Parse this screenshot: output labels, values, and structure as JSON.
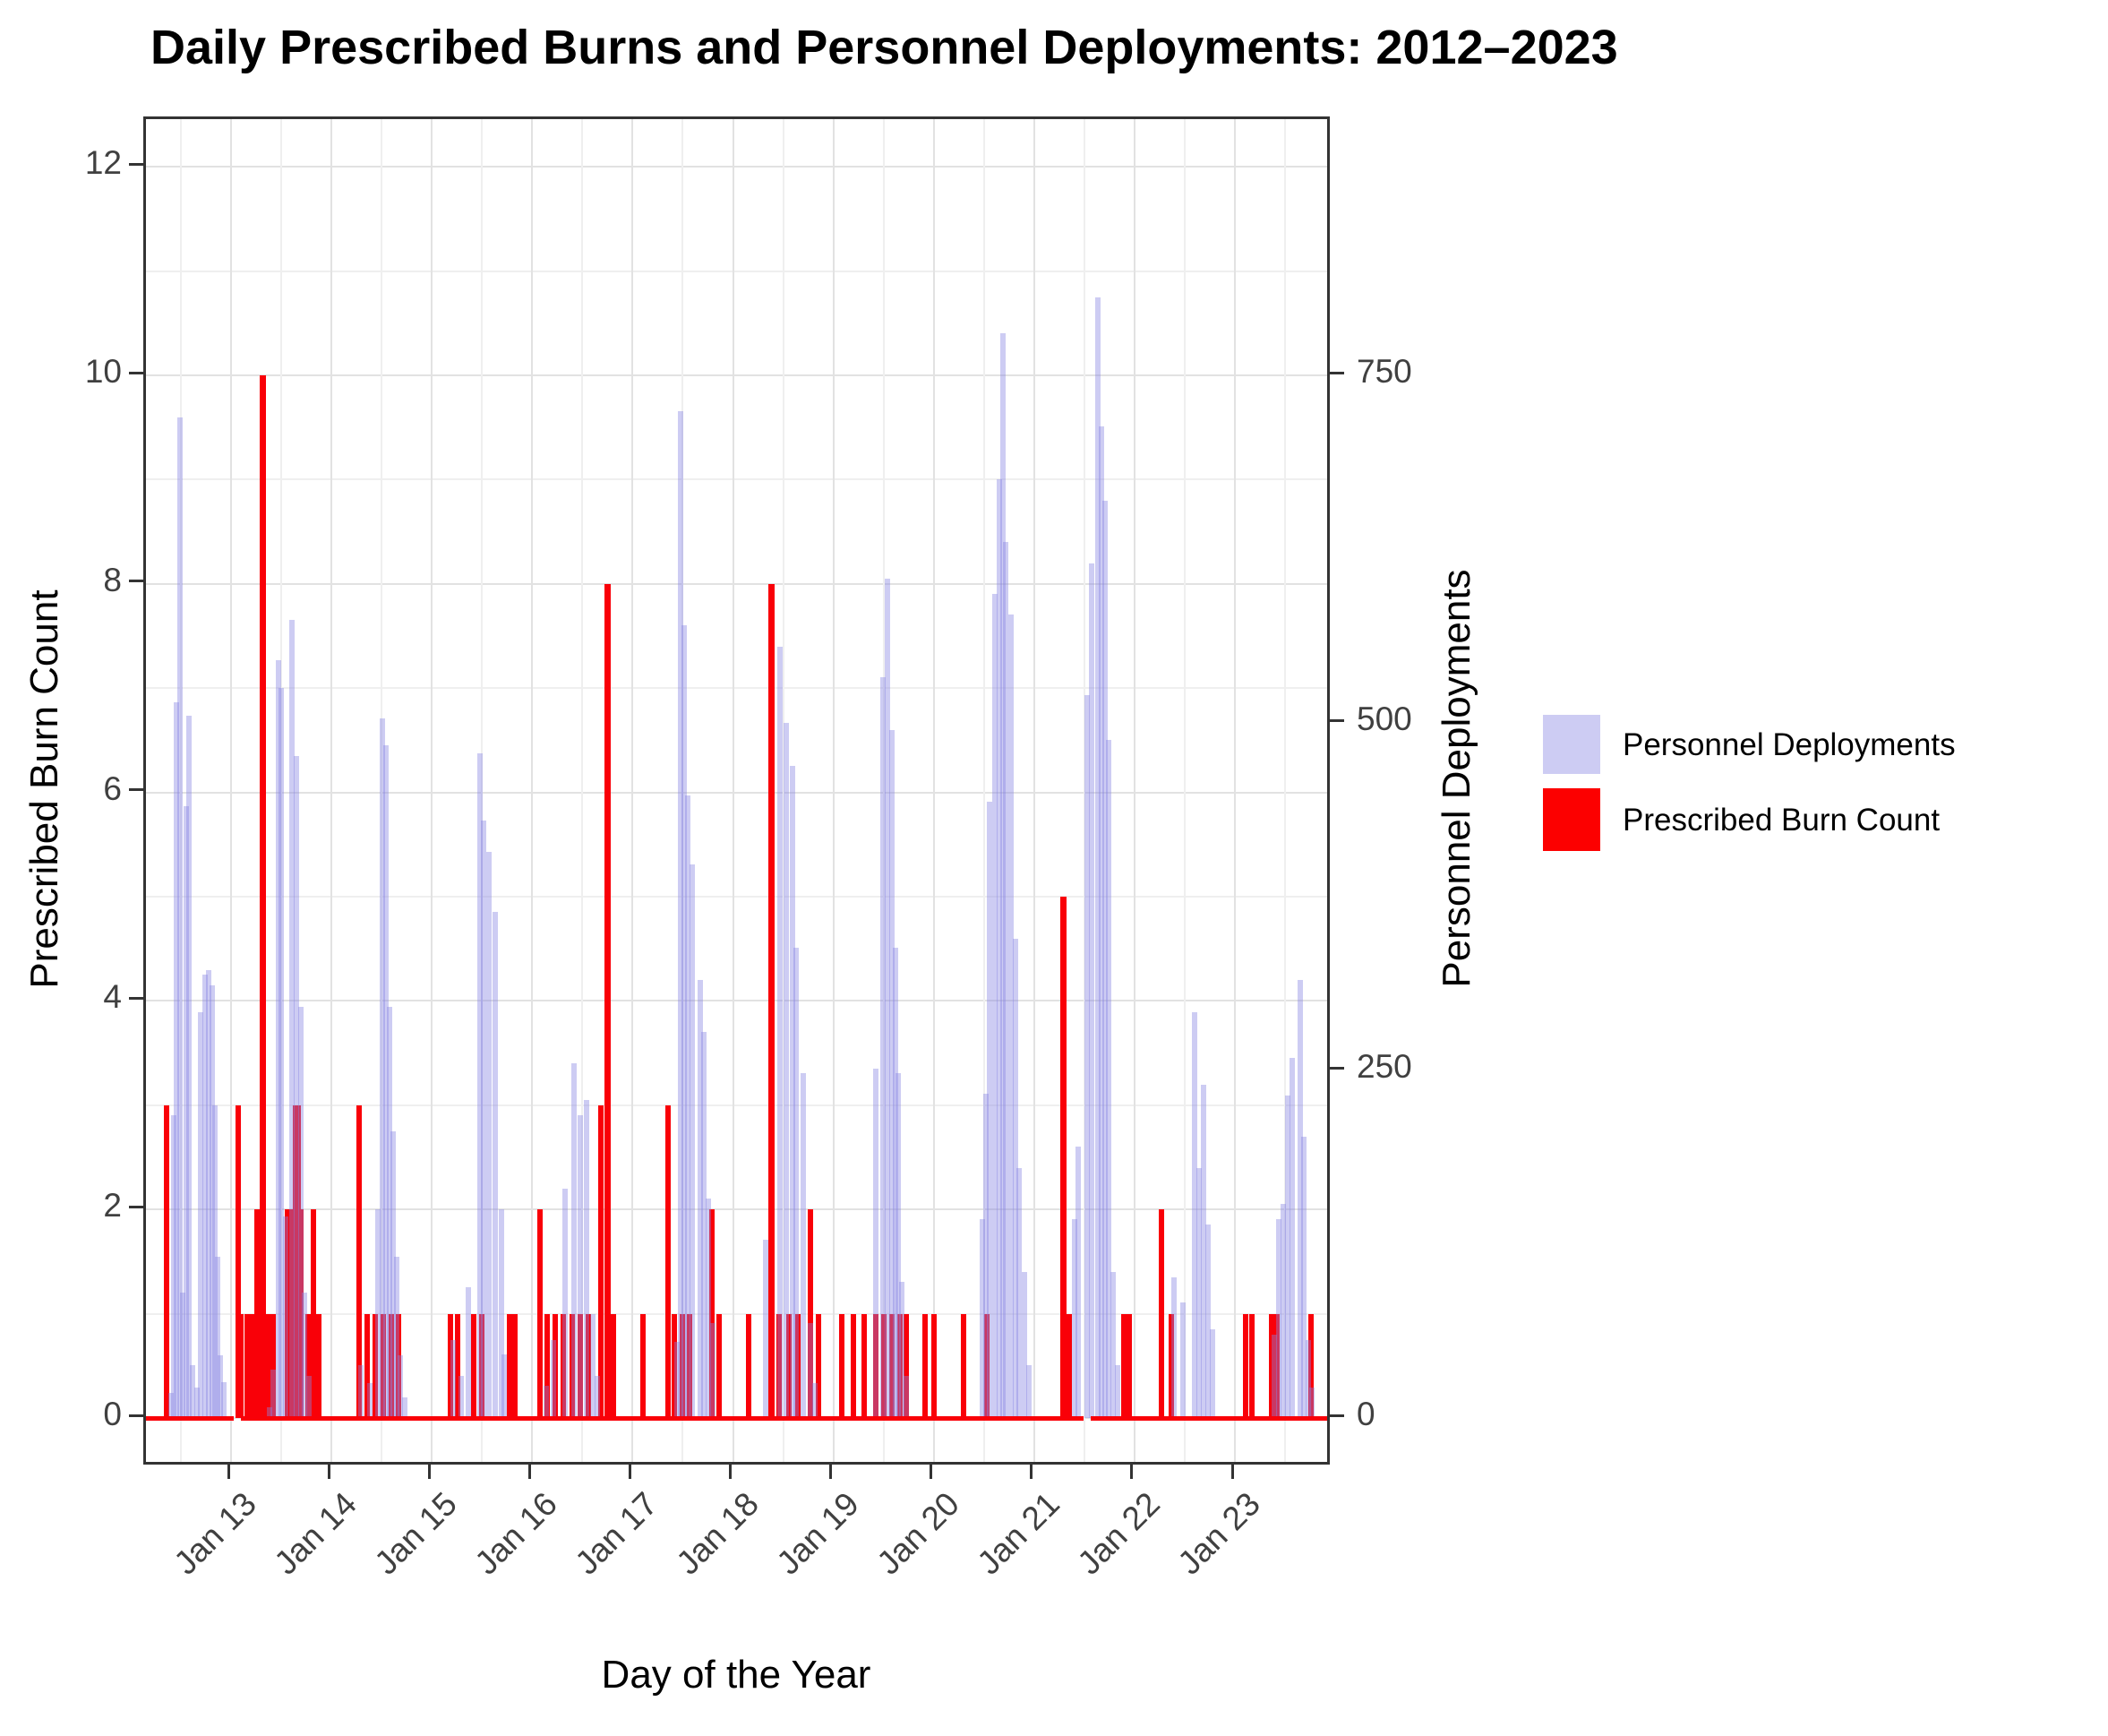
{
  "chart_data": {
    "type": "bar",
    "title": "Daily Prescribed Burns and Personnel Deployments: 2012–2023",
    "xlabel": "Day of the Year",
    "ylabel_left": "Prescribed Burn Count",
    "ylabel_right": "Personnel Deployments",
    "x_tick_labels": [
      "Jan 13",
      "Jan 14",
      "Jan 15",
      "Jan 16",
      "Jan 17",
      "Jan 18",
      "Jan 19",
      "Jan 20",
      "Jan 21",
      "Jan 22",
      "Jan 23"
    ],
    "x_tick_years": [
      2013,
      2014,
      2015,
      2016,
      2017,
      2018,
      2019,
      2020,
      2021,
      2022,
      2023
    ],
    "x_range": [
      2012.15,
      2023.97
    ],
    "ylim_left": [
      -0.45,
      12.45
    ],
    "left_ticks": [
      0,
      2,
      4,
      6,
      8,
      10,
      12
    ],
    "right_ticks": [
      0,
      250,
      500,
      750
    ],
    "right_per_left_unit": 75,
    "grid": "major and minor, light gray on white",
    "legend_position": "right",
    "series": [
      {
        "name": "Personnel Deployments",
        "axis": "right",
        "color": "#cdccf3",
        "points": [
          [
            2012.4,
            18
          ],
          [
            2012.43,
            218
          ],
          [
            2012.455,
            515
          ],
          [
            2012.49,
            720
          ],
          [
            2012.52,
            90
          ],
          [
            2012.555,
            440
          ],
          [
            2012.585,
            505
          ],
          [
            2012.62,
            38
          ],
          [
            2012.665,
            22
          ],
          [
            2012.7,
            292
          ],
          [
            2012.74,
            319
          ],
          [
            2012.78,
            322
          ],
          [
            2012.81,
            311
          ],
          [
            2012.84,
            225
          ],
          [
            2012.87,
            116
          ],
          [
            2012.895,
            45
          ],
          [
            2012.93,
            26
          ],
          [
            2013.38,
            8
          ],
          [
            2013.42,
            35
          ],
          [
            2013.47,
            545
          ],
          [
            2013.5,
            525
          ],
          [
            2013.545,
            145
          ],
          [
            2013.61,
            574
          ],
          [
            2013.65,
            476
          ],
          [
            2013.7,
            296
          ],
          [
            2013.735,
            90
          ],
          [
            2013.78,
            30
          ],
          [
            2014.29,
            38
          ],
          [
            2014.38,
            25
          ],
          [
            2014.46,
            150
          ],
          [
            2014.51,
            503
          ],
          [
            2014.545,
            484
          ],
          [
            2014.58,
            296
          ],
          [
            2014.615,
            206
          ],
          [
            2014.65,
            116
          ],
          [
            2014.69,
            45
          ],
          [
            2014.73,
            15
          ],
          [
            2015.21,
            56
          ],
          [
            2015.29,
            30
          ],
          [
            2015.36,
            94
          ],
          [
            2015.48,
            478
          ],
          [
            2015.52,
            430
          ],
          [
            2015.565,
            407
          ],
          [
            2015.635,
            364
          ],
          [
            2015.69,
            150
          ],
          [
            2015.725,
            46
          ],
          [
            2016.14,
            23
          ],
          [
            2016.21,
            56
          ],
          [
            2016.33,
            165
          ],
          [
            2016.42,
            255
          ],
          [
            2016.475,
            218
          ],
          [
            2016.54,
            229
          ],
          [
            2016.6,
            75
          ],
          [
            2016.645,
            30
          ],
          [
            2017.44,
            55
          ],
          [
            2017.48,
            724
          ],
          [
            2017.51,
            570
          ],
          [
            2017.55,
            448
          ],
          [
            2017.595,
            398
          ],
          [
            2017.67,
            315
          ],
          [
            2017.71,
            278
          ],
          [
            2017.755,
            158
          ],
          [
            2017.8,
            68
          ],
          [
            2018.33,
            128
          ],
          [
            2018.47,
            555
          ],
          [
            2018.53,
            500
          ],
          [
            2018.59,
            469
          ],
          [
            2018.63,
            338
          ],
          [
            2018.7,
            248
          ],
          [
            2018.77,
            68
          ],
          [
            2018.82,
            25
          ],
          [
            2019.42,
            251
          ],
          [
            2019.49,
            533
          ],
          [
            2019.54,
            604
          ],
          [
            2019.58,
            495
          ],
          [
            2019.62,
            338
          ],
          [
            2019.65,
            248
          ],
          [
            2019.68,
            98
          ],
          [
            2019.73,
            30
          ],
          [
            2020.48,
            143
          ],
          [
            2020.52,
            233
          ],
          [
            2020.56,
            443
          ],
          [
            2020.61,
            593
          ],
          [
            2020.65,
            675
          ],
          [
            2020.69,
            780
          ],
          [
            2020.72,
            630
          ],
          [
            2020.77,
            578
          ],
          [
            2020.81,
            345
          ],
          [
            2020.85,
            180
          ],
          [
            2020.9,
            105
          ],
          [
            2020.95,
            38
          ],
          [
            2021.4,
            143
          ],
          [
            2021.44,
            195
          ],
          [
            2021.53,
            520
          ],
          [
            2021.57,
            615
          ],
          [
            2021.635,
            806
          ],
          [
            2021.67,
            713
          ],
          [
            2021.71,
            660
          ],
          [
            2021.74,
            488
          ],
          [
            2021.79,
            105
          ],
          [
            2021.83,
            38
          ],
          [
            2022.39,
            101
          ],
          [
            2022.48,
            83
          ],
          [
            2022.6,
            292
          ],
          [
            2022.64,
            180
          ],
          [
            2022.69,
            240
          ],
          [
            2022.73,
            139
          ],
          [
            2022.78,
            64
          ],
          [
            2023.39,
            60
          ],
          [
            2023.44,
            143
          ],
          [
            2023.48,
            154
          ],
          [
            2023.53,
            232
          ],
          [
            2023.575,
            259
          ],
          [
            2023.65,
            315
          ],
          [
            2023.69,
            202
          ],
          [
            2023.73,
            56
          ],
          [
            2023.77,
            22
          ]
        ]
      },
      {
        "name": "Prescribed Burn Count",
        "axis": "left",
        "color": "#f90008",
        "points": [
          [
            2012.36,
            3
          ],
          [
            2013.07,
            3
          ],
          [
            2013.1,
            1
          ],
          [
            2013.16,
            1
          ],
          [
            2013.21,
            1
          ],
          [
            2013.26,
            2
          ],
          [
            2013.32,
            10
          ],
          [
            2013.37,
            1
          ],
          [
            2013.42,
            1
          ],
          [
            2013.56,
            2
          ],
          [
            2013.615,
            2
          ],
          [
            2013.645,
            3
          ],
          [
            2013.67,
            3
          ],
          [
            2013.7,
            2
          ],
          [
            2013.77,
            1
          ],
          [
            2013.82,
            2
          ],
          [
            2013.87,
            1
          ],
          [
            2014.28,
            3
          ],
          [
            2014.36,
            1
          ],
          [
            2014.44,
            1
          ],
          [
            2014.52,
            1
          ],
          [
            2014.6,
            1
          ],
          [
            2014.67,
            1
          ],
          [
            2015.19,
            1
          ],
          [
            2015.26,
            1
          ],
          [
            2015.42,
            1
          ],
          [
            2015.5,
            1
          ],
          [
            2015.77,
            1
          ],
          [
            2015.83,
            1
          ],
          [
            2016.08,
            2
          ],
          [
            2016.15,
            1
          ],
          [
            2016.23,
            1
          ],
          [
            2016.31,
            1
          ],
          [
            2016.4,
            1
          ],
          [
            2016.48,
            1
          ],
          [
            2016.56,
            1
          ],
          [
            2016.68,
            3
          ],
          [
            2016.755,
            8
          ],
          [
            2016.81,
            1
          ],
          [
            2017.1,
            1
          ],
          [
            2017.35,
            3
          ],
          [
            2017.42,
            1
          ],
          [
            2017.5,
            1
          ],
          [
            2017.57,
            1
          ],
          [
            2017.79,
            2
          ],
          [
            2017.86,
            1
          ],
          [
            2018.16,
            1
          ],
          [
            2018.38,
            8
          ],
          [
            2018.46,
            1
          ],
          [
            2018.56,
            1
          ],
          [
            2018.65,
            1
          ],
          [
            2018.77,
            2
          ],
          [
            2018.85,
            1
          ],
          [
            2019.08,
            1
          ],
          [
            2019.2,
            1
          ],
          [
            2019.31,
            1
          ],
          [
            2019.42,
            1
          ],
          [
            2019.5,
            1
          ],
          [
            2019.58,
            1
          ],
          [
            2019.66,
            1
          ],
          [
            2019.73,
            1
          ],
          [
            2019.91,
            1
          ],
          [
            2020.0,
            1
          ],
          [
            2020.3,
            1
          ],
          [
            2020.53,
            1
          ],
          [
            2021.29,
            5
          ],
          [
            2021.35,
            1
          ],
          [
            2021.89,
            1
          ],
          [
            2021.95,
            1
          ],
          [
            2022.27,
            2
          ],
          [
            2022.37,
            1
          ],
          [
            2023.11,
            1
          ],
          [
            2023.17,
            1
          ],
          [
            2023.37,
            1
          ],
          [
            2023.42,
            1
          ],
          [
            2023.76,
            1
          ]
        ]
      }
    ],
    "baseline_segments": [
      [
        2012.15,
        2013.03
      ],
      [
        2013.1,
        2021.49
      ],
      [
        2021.56,
        2023.93
      ]
    ]
  },
  "legend": {
    "items": [
      {
        "label": "Personnel Deployments",
        "color": "#cdccf3"
      },
      {
        "label": "Prescribed Burn Count",
        "color": "#fc0000"
      }
    ]
  }
}
